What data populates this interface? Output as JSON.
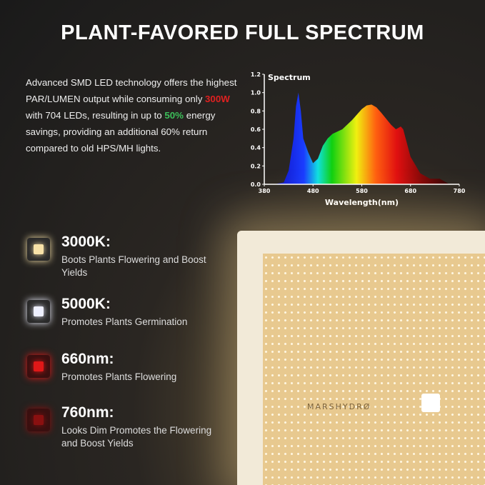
{
  "title": "PLANT-FAVORED FULL SPECTRUM",
  "description": {
    "part1": "Advanced SMD LED technology offers the highest PAR/LUMEN output while consuming only ",
    "watts": "300W",
    "part2": " with 704 LEDs, resulting in up to ",
    "savings": "50%",
    "part3": " energy savings, providing an additional 60% return compared to old HPS/MH lights."
  },
  "features": [
    {
      "label": "3000K:",
      "text": "Boots Plants Flowering and Boost Yields",
      "color": "#f7e2a8"
    },
    {
      "label": "5000K:",
      "text": "Promotes Plants Germination",
      "color": "#eef0ff"
    },
    {
      "label": "660nm:",
      "text": "Promotes Plants Flowering",
      "color": "#e01818"
    },
    {
      "label": "760nm:",
      "text": "Looks Dim Promotes the Flowering and Boost Yields",
      "color": "#8a1010"
    }
  ],
  "panel": {
    "brand": "MARSHYDRØ"
  },
  "chart_data": {
    "type": "area",
    "title": "Spectrum",
    "xlabel": "Wavelength(nm)",
    "ylabel": "",
    "xlim": [
      380,
      780
    ],
    "ylim": [
      0,
      1.2
    ],
    "xticks": [
      380,
      480,
      580,
      680,
      780
    ],
    "yticks": [
      "0.0",
      "0.2",
      "0.4",
      "0.6",
      "0.8",
      "1.0",
      "1.2"
    ],
    "x": [
      400,
      420,
      430,
      440,
      445,
      450,
      455,
      460,
      470,
      480,
      490,
      500,
      510,
      520,
      540,
      560,
      580,
      590,
      600,
      610,
      620,
      640,
      650,
      660,
      665,
      670,
      680,
      700,
      720,
      740,
      750,
      760
    ],
    "y": [
      0,
      0.02,
      0.15,
      0.5,
      0.85,
      1.0,
      0.8,
      0.5,
      0.35,
      0.23,
      0.28,
      0.42,
      0.5,
      0.55,
      0.6,
      0.7,
      0.82,
      0.86,
      0.87,
      0.84,
      0.78,
      0.65,
      0.6,
      0.63,
      0.6,
      0.5,
      0.3,
      0.12,
      0.06,
      0.06,
      0.03,
      0
    ],
    "grid": false,
    "fill": "visible-spectrum gradient"
  }
}
